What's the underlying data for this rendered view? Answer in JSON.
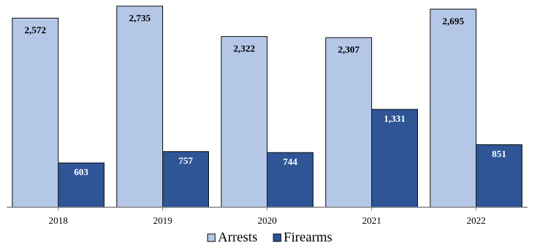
{
  "chart_data": {
    "type": "bar",
    "categories": [
      "2018",
      "2019",
      "2020",
      "2021",
      "2022"
    ],
    "series": [
      {
        "name": "Arrests",
        "values": [
          2572,
          2735,
          2322,
          2307,
          2695
        ],
        "labels": [
          "2,572",
          "2,735",
          "2,322",
          "2,307",
          "2,695"
        ],
        "color": "#b4c7e7",
        "label_color": "#000000"
      },
      {
        "name": "Firearms",
        "values": [
          603,
          757,
          744,
          1331,
          851
        ],
        "labels": [
          "603",
          "757",
          "744",
          "1,331",
          "851"
        ],
        "color": "#2f5597",
        "label_color": "#ffffff"
      }
    ],
    "title": "",
    "xlabel": "",
    "ylabel": "",
    "ylim": [
      0,
      2800
    ],
    "grid": false,
    "legend": "bottom-center"
  }
}
